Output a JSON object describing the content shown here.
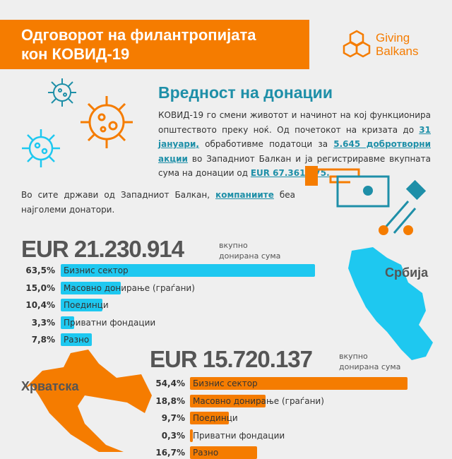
{
  "header": {
    "title_line1": "Одговорот на филантропијата",
    "title_line2": "кон КОВИД-19"
  },
  "logo": {
    "line1": "Giving",
    "line2": "Balkans"
  },
  "section": {
    "title": "Вредност на донации",
    "p1": "КОВИД-19 го смени животот и начинот на кој функционира општеството преку ноќ. Од почетокот на кризата до ",
    "date": "31 јануари,",
    "p2": " обработивме податоци за ",
    "actions": "5.645 добротворни акции",
    "p3": " во Западниот Балкан и ја регистриравме вкупната сума на донации од ",
    "sum": "EUR 67.361.175."
  },
  "lead": {
    "p1": "Во сите држави од Западниот Балкан, ",
    "hl": "компаниите",
    "p2": " беа најголеми донатори."
  },
  "colors": {
    "serbia": "#1ec8f0",
    "croatia": "#f57c00",
    "accent": "#1e8fa8"
  },
  "chart_data": [
    {
      "type": "bar",
      "country": "Србија",
      "total": "EUR 21.230.914",
      "total_label": "вкупно донирана сума",
      "total_label1": "вкупно",
      "total_label2": "донирана сума",
      "categories": [
        "Бизнис сектор",
        "Масовно донирање (граѓани)",
        "Поединци",
        "Приватни фондации",
        "Разно"
      ],
      "values": [
        63.5,
        15.0,
        10.4,
        3.3,
        7.8
      ],
      "labels": [
        "63,5%",
        "15,0%",
        "10,4%",
        "3,3%",
        "7,8%"
      ]
    },
    {
      "type": "bar",
      "country": "Хрватска",
      "total": "EUR 15.720.137",
      "total_label1": "вкупно",
      "total_label2": "донирана сума",
      "categories": [
        "Бизнис сектор",
        "Масовно донирање (граѓани)",
        "Поединци",
        "Приватни фондации",
        "Разно"
      ],
      "values": [
        54.4,
        18.8,
        9.7,
        0.3,
        16.7
      ],
      "labels": [
        "54,4%",
        "18,8%",
        "9,7%",
        "0,3%",
        "16,7%"
      ]
    }
  ]
}
